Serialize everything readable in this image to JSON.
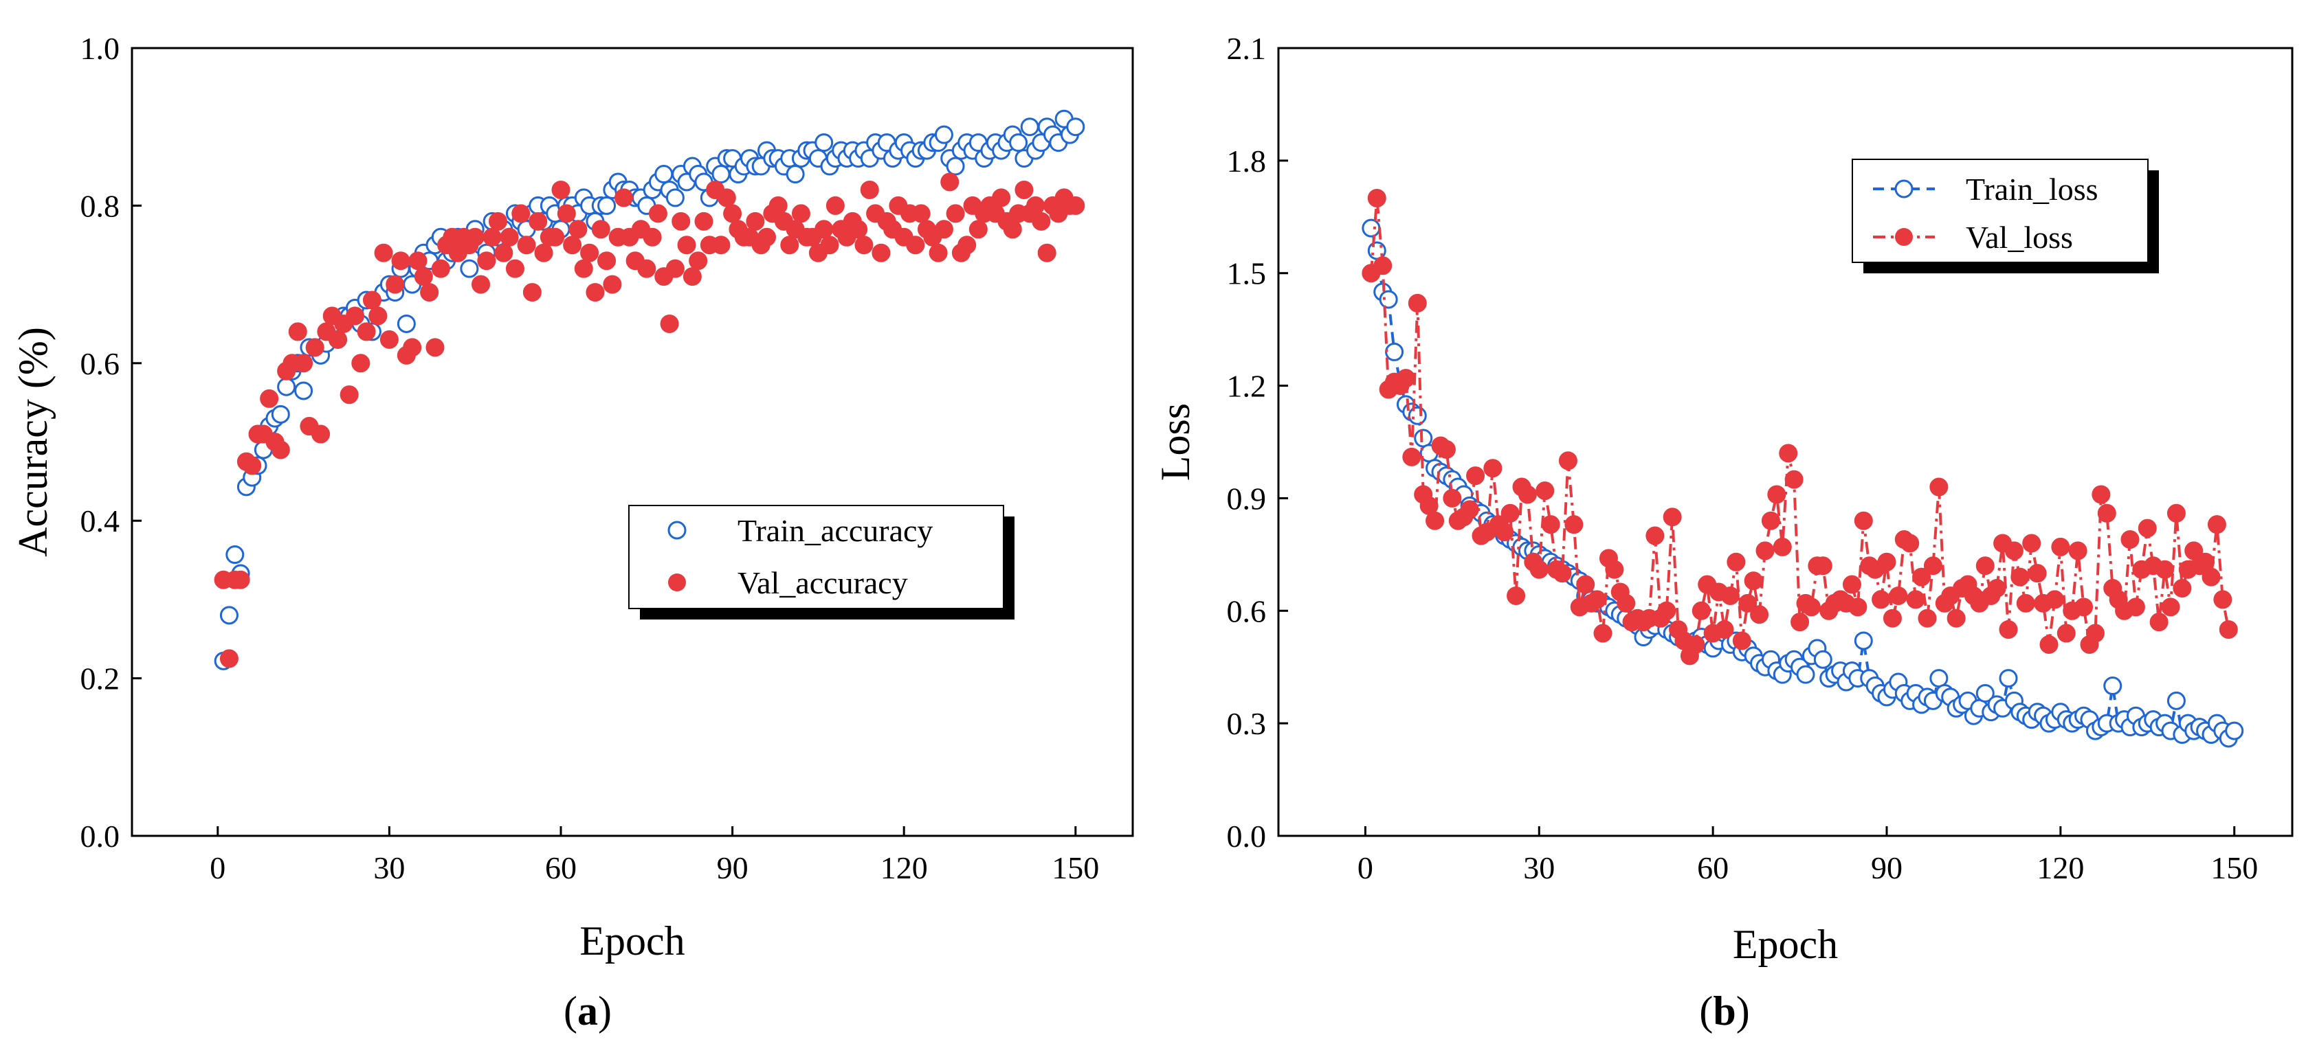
{
  "chart_data": [
    {
      "type": "scatter",
      "panel_label": "a",
      "xlabel": "Epoch",
      "ylabel": "Accuracy (%)",
      "xlim": [
        -15,
        160
      ],
      "ylim": [
        0.0,
        1.0
      ],
      "xticks": [
        "0",
        "30",
        "60",
        "90",
        "120",
        "150"
      ],
      "yticks": [
        "0.0",
        "0.2",
        "0.4",
        "0.6",
        "0.8",
        "1.0"
      ],
      "legend_position": "center-right",
      "series": [
        {
          "name": "Train_accuracy",
          "marker": "open-circle",
          "color": "#1f66d6",
          "values": [
            0.222,
            0.28,
            0.357,
            0.333,
            0.443,
            0.455,
            0.47,
            0.49,
            0.52,
            0.53,
            0.535,
            0.57,
            0.59,
            0.6,
            0.565,
            0.62,
            0.62,
            0.61,
            0.625,
            0.64,
            0.63,
            0.66,
            0.66,
            0.67,
            0.65,
            0.68,
            0.64,
            0.66,
            0.69,
            0.7,
            0.69,
            0.72,
            0.65,
            0.7,
            0.72,
            0.74,
            0.73,
            0.75,
            0.76,
            0.73,
            0.74,
            0.76,
            0.75,
            0.72,
            0.77,
            0.75,
            0.74,
            0.78,
            0.76,
            0.77,
            0.76,
            0.79,
            0.78,
            0.77,
            0.79,
            0.8,
            0.78,
            0.8,
            0.79,
            0.77,
            0.8,
            0.8,
            0.79,
            0.81,
            0.8,
            0.78,
            0.8,
            0.8,
            0.82,
            0.83,
            0.82,
            0.82,
            0.81,
            0.81,
            0.8,
            0.82,
            0.83,
            0.84,
            0.82,
            0.81,
            0.84,
            0.83,
            0.85,
            0.84,
            0.83,
            0.81,
            0.85,
            0.84,
            0.86,
            0.86,
            0.84,
            0.85,
            0.86,
            0.85,
            0.85,
            0.87,
            0.86,
            0.86,
            0.85,
            0.86,
            0.84,
            0.86,
            0.87,
            0.87,
            0.86,
            0.88,
            0.85,
            0.86,
            0.87,
            0.86,
            0.87,
            0.86,
            0.87,
            0.86,
            0.88,
            0.87,
            0.88,
            0.86,
            0.87,
            0.88,
            0.87,
            0.86,
            0.87,
            0.87,
            0.88,
            0.88,
            0.89,
            0.86,
            0.85,
            0.87,
            0.88,
            0.87,
            0.88,
            0.86,
            0.87,
            0.88,
            0.87,
            0.88,
            0.89,
            0.88,
            0.86,
            0.9,
            0.87,
            0.88,
            0.9,
            0.89,
            0.88,
            0.91,
            0.89,
            0.9
          ]
        },
        {
          "name": "Val_accuracy",
          "marker": "filled-circle",
          "color": "#e8393f",
          "values": [
            0.325,
            0.225,
            0.325,
            0.325,
            0.475,
            0.47,
            0.51,
            0.51,
            0.555,
            0.5,
            0.49,
            0.59,
            0.6,
            0.64,
            0.6,
            0.52,
            0.62,
            0.51,
            0.64,
            0.66,
            0.63,
            0.65,
            0.56,
            0.66,
            0.6,
            0.64,
            0.68,
            0.66,
            0.74,
            0.63,
            0.7,
            0.73,
            0.61,
            0.62,
            0.73,
            0.71,
            0.69,
            0.62,
            0.72,
            0.75,
            0.76,
            0.74,
            0.76,
            0.75,
            0.76,
            0.7,
            0.73,
            0.76,
            0.78,
            0.74,
            0.76,
            0.72,
            0.79,
            0.75,
            0.69,
            0.78,
            0.74,
            0.76,
            0.76,
            0.82,
            0.79,
            0.75,
            0.77,
            0.72,
            0.74,
            0.69,
            0.77,
            0.73,
            0.7,
            0.76,
            0.81,
            0.76,
            0.73,
            0.77,
            0.72,
            0.76,
            0.79,
            0.71,
            0.65,
            0.72,
            0.78,
            0.75,
            0.71,
            0.73,
            0.78,
            0.75,
            0.82,
            0.75,
            0.81,
            0.79,
            0.77,
            0.76,
            0.76,
            0.78,
            0.75,
            0.76,
            0.79,
            0.8,
            0.78,
            0.75,
            0.77,
            0.79,
            0.76,
            0.76,
            0.74,
            0.77,
            0.75,
            0.8,
            0.77,
            0.76,
            0.78,
            0.77,
            0.75,
            0.82,
            0.79,
            0.74,
            0.78,
            0.77,
            0.8,
            0.76,
            0.79,
            0.75,
            0.79,
            0.77,
            0.76,
            0.74,
            0.77,
            0.83,
            0.79,
            0.74,
            0.75,
            0.8,
            0.77,
            0.79,
            0.8,
            0.79,
            0.81,
            0.78,
            0.77,
            0.79,
            0.82,
            0.79,
            0.8,
            0.78,
            0.74,
            0.8,
            0.79,
            0.81,
            0.8,
            0.8
          ]
        }
      ]
    },
    {
      "type": "line",
      "panel_label": "b",
      "xlabel": "Epoch",
      "ylabel": "Loss",
      "xlim": [
        -15,
        160
      ],
      "ylim": [
        0.0,
        2.1
      ],
      "xticks": [
        "0",
        "30",
        "60",
        "90",
        "120",
        "150"
      ],
      "yticks": [
        "0.0",
        "0.3",
        "0.6",
        "0.9",
        "1.2",
        "1.5",
        "1.8",
        "2.1"
      ],
      "legend_position": "top-right",
      "series": [
        {
          "name": "Train_loss",
          "marker": "open-circle",
          "line": "dashed",
          "color": "#1f66d6",
          "values": [
            1.62,
            1.56,
            1.45,
            1.43,
            1.29,
            1.21,
            1.15,
            1.13,
            1.12,
            1.06,
            1.02,
            0.98,
            0.97,
            0.96,
            0.95,
            0.93,
            0.91,
            0.88,
            0.87,
            0.86,
            0.84,
            0.83,
            0.82,
            0.8,
            0.79,
            0.78,
            0.77,
            0.76,
            0.76,
            0.75,
            0.74,
            0.73,
            0.72,
            0.71,
            0.7,
            0.69,
            0.68,
            0.64,
            0.63,
            0.62,
            0.62,
            0.61,
            0.6,
            0.59,
            0.58,
            0.57,
            0.56,
            0.53,
            0.55,
            0.56,
            0.58,
            0.55,
            0.54,
            0.53,
            0.52,
            0.51,
            0.52,
            0.53,
            0.51,
            0.5,
            0.52,
            0.54,
            0.51,
            0.52,
            0.49,
            0.5,
            0.48,
            0.46,
            0.45,
            0.47,
            0.44,
            0.43,
            0.46,
            0.47,
            0.45,
            0.43,
            0.48,
            0.5,
            0.47,
            0.42,
            0.43,
            0.44,
            0.41,
            0.44,
            0.42,
            0.52,
            0.42,
            0.4,
            0.38,
            0.37,
            0.39,
            0.41,
            0.38,
            0.36,
            0.38,
            0.35,
            0.37,
            0.36,
            0.42,
            0.38,
            0.37,
            0.34,
            0.35,
            0.36,
            0.32,
            0.34,
            0.38,
            0.33,
            0.35,
            0.34,
            0.42,
            0.36,
            0.33,
            0.32,
            0.31,
            0.33,
            0.32,
            0.3,
            0.31,
            0.33,
            0.31,
            0.3,
            0.31,
            0.32,
            0.31,
            0.28,
            0.29,
            0.3,
            0.4,
            0.3,
            0.31,
            0.29,
            0.32,
            0.29,
            0.3,
            0.31,
            0.29,
            0.3,
            0.28,
            0.36,
            0.27,
            0.3,
            0.28,
            0.29,
            0.28,
            0.27,
            0.3,
            0.28,
            0.26,
            0.28
          ]
        },
        {
          "name": "Val_loss",
          "marker": "filled-circle",
          "line": "dash-dot",
          "color": "#e8393f",
          "values": [
            1.5,
            1.7,
            1.52,
            1.19,
            1.21,
            1.2,
            1.22,
            1.01,
            1.42,
            0.91,
            0.88,
            0.84,
            1.04,
            1.03,
            0.9,
            0.84,
            0.85,
            0.87,
            0.96,
            0.8,
            0.81,
            0.98,
            0.83,
            0.81,
            0.86,
            0.64,
            0.93,
            0.91,
            0.73,
            0.71,
            0.92,
            0.83,
            0.71,
            0.7,
            1.0,
            0.83,
            0.61,
            0.67,
            0.62,
            0.63,
            0.54,
            0.74,
            0.71,
            0.65,
            0.62,
            0.57,
            0.58,
            0.57,
            0.58,
            0.8,
            0.58,
            0.6,
            0.85,
            0.55,
            0.52,
            0.48,
            0.51,
            0.6,
            0.67,
            0.54,
            0.65,
            0.55,
            0.64,
            0.73,
            0.52,
            0.62,
            0.68,
            0.59,
            0.76,
            0.84,
            0.91,
            0.77,
            1.02,
            0.95,
            0.57,
            0.62,
            0.61,
            0.72,
            0.72,
            0.6,
            0.62,
            0.63,
            0.62,
            0.67,
            0.61,
            0.84,
            0.72,
            0.71,
            0.63,
            0.73,
            0.58,
            0.64,
            0.79,
            0.78,
            0.63,
            0.69,
            0.58,
            0.72,
            0.93,
            0.62,
            0.64,
            0.58,
            0.66,
            0.67,
            0.64,
            0.62,
            0.72,
            0.64,
            0.66,
            0.78,
            0.55,
            0.76,
            0.69,
            0.62,
            0.78,
            0.7,
            0.62,
            0.51,
            0.63,
            0.77,
            0.54,
            0.6,
            0.76,
            0.61,
            0.51,
            0.54,
            0.91,
            0.86,
            0.66,
            0.63,
            0.6,
            0.79,
            0.61,
            0.71,
            0.82,
            0.72,
            0.57,
            0.71,
            0.61,
            0.86,
            0.66,
            0.71,
            0.76,
            0.72,
            0.73,
            0.69,
            0.83,
            0.63,
            0.55
          ]
        }
      ]
    }
  ],
  "captions": [
    {
      "open": "(",
      "label": "a",
      "close": ")"
    },
    {
      "open": "(",
      "label": "b",
      "close": ")"
    }
  ]
}
